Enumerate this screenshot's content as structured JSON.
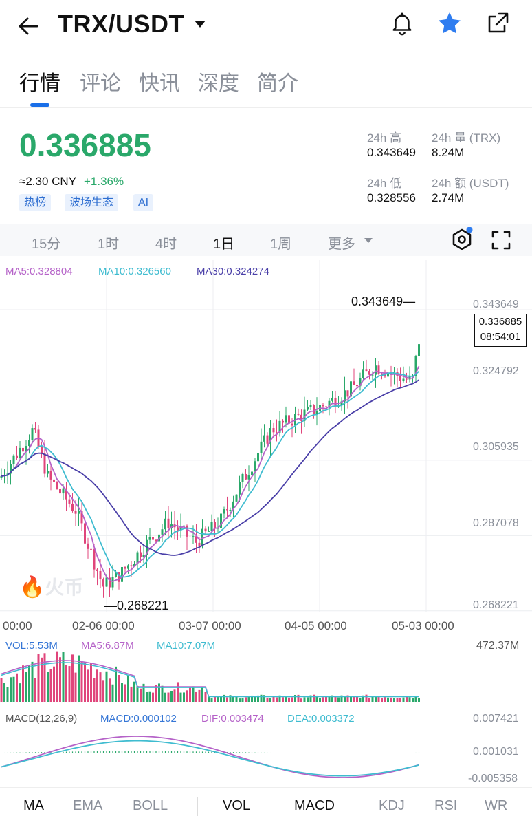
{
  "header": {
    "pair": "TRX/USDT",
    "icons": [
      "back-arrow-icon",
      "dropdown-caret-icon",
      "bell-icon",
      "star-icon",
      "share-icon"
    ],
    "star_color": "#2f7df0"
  },
  "tabs": [
    {
      "label": "行情",
      "active": true
    },
    {
      "label": "评论",
      "active": false
    },
    {
      "label": "快讯",
      "active": false
    },
    {
      "label": "深度",
      "active": false
    },
    {
      "label": "简介",
      "active": false
    }
  ],
  "ticker": {
    "price": "0.336885",
    "cny": "≈2.30 CNY",
    "change": "+1.36%",
    "tags": [
      "热榜",
      "波场生态",
      "AI"
    ],
    "stats": {
      "high_label": "24h 高",
      "high_value": "0.343649",
      "vol_label": "24h 量 (TRX)",
      "vol_value": "8.24M",
      "low_label": "24h 低",
      "low_value": "0.328556",
      "amt_label": "24h 额 (USDT)",
      "amt_value": "2.74M"
    },
    "colors": {
      "up": "#2aa86a",
      "down": "#e0457b"
    }
  },
  "periods": [
    {
      "label": "15分",
      "active": false
    },
    {
      "label": "1时",
      "active": false
    },
    {
      "label": "4时",
      "active": false
    },
    {
      "label": "1日",
      "active": true
    },
    {
      "label": "1周",
      "active": false
    },
    {
      "label": "更多",
      "active": false
    }
  ],
  "chart": {
    "ma_legend": {
      "ma5": "MA5:0.328804",
      "ma10": "MA10:0.326560",
      "ma30": "MA30:0.324274"
    },
    "y_labels": [
      "0.343649",
      "0.324792",
      "0.305935",
      "0.287078",
      "0.268221"
    ],
    "x_labels": [
      "00:00",
      "02-06 00:00",
      "03-07 00:00",
      "04-05 00:00",
      "05-03 00:00"
    ],
    "high_marker": "0.343649",
    "low_marker": "0.268221",
    "last_price": "0.336885",
    "countdown": "08:54:01",
    "watermark": "火币",
    "vol_legend": {
      "vol": "VOL:5.53M",
      "ma5": "MA5:6.87M",
      "ma10": "MA10:7.07M",
      "max": "472.37M"
    },
    "macd_legend": {
      "params": "MACD(12,26,9)",
      "macd": "MACD:0.000102",
      "dif": "DIF:0.003474",
      "dea": "DEA:0.003372"
    },
    "macd_axis": [
      "0.007421",
      "0.001031",
      "-0.005358"
    ]
  },
  "chart_data": {
    "type": "candlestick",
    "ylim": [
      0.268221,
      0.343649
    ],
    "x_ticks": [
      "00:00",
      "02-06 00:00",
      "03-07 00:00",
      "04-05 00:00",
      "05-03 00:00"
    ],
    "high": 0.343649,
    "low": 0.268221,
    "last": 0.336885,
    "ma_values": {
      "MA5": 0.328804,
      "MA10": 0.32656,
      "MA30": 0.324274
    }
  },
  "bottom_tabs": [
    {
      "label": "MA",
      "active": true
    },
    {
      "label": "EMA",
      "active": false
    },
    {
      "label": "BOLL",
      "active": false
    },
    {
      "label": "VOL",
      "active": true
    },
    {
      "label": "MACD",
      "active": true
    },
    {
      "label": "KDJ",
      "active": false
    },
    {
      "label": "RSI",
      "active": false
    },
    {
      "label": "WR",
      "active": false
    }
  ]
}
